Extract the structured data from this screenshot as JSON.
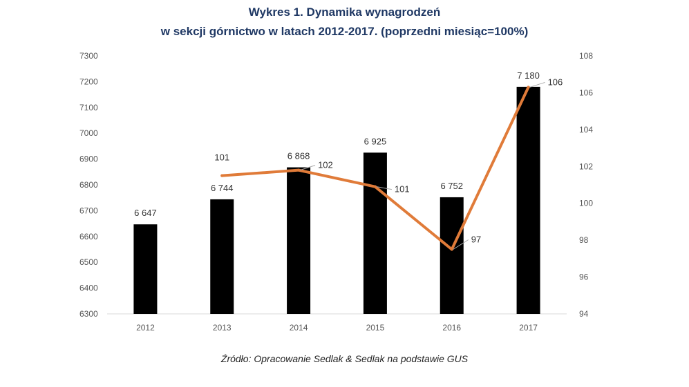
{
  "chart_data": {
    "type": "bar+line",
    "title_line1": "Wykres 1. Dynamika wynagrodzeń",
    "title_line2": "w sekcji górnictwo w latach 2012-2017. (poprzedni miesiąc=100%)",
    "categories": [
      "2012",
      "2013",
      "2014",
      "2015",
      "2016",
      "2017"
    ],
    "bar_series": {
      "values": [
        6647,
        6744,
        6868,
        6925,
        6752,
        7180
      ],
      "labels": [
        "6 647",
        "6 744",
        "6 868",
        "6 925",
        "6 752",
        "7 180"
      ],
      "color": "#000000"
    },
    "line_series": {
      "x": [
        "2013",
        "2014",
        "2015",
        "2016",
        "2017"
      ],
      "values": [
        101.5,
        101.8,
        100.9,
        97.5,
        106.3
      ],
      "labels": [
        "101",
        "102",
        "101",
        "97",
        "106"
      ],
      "color": "#e07b39"
    },
    "y_left": {
      "ylim": [
        6300,
        7300
      ],
      "ticks": [
        "6300",
        "6400",
        "6500",
        "6600",
        "6700",
        "6800",
        "6900",
        "7000",
        "7100",
        "7200",
        "7300"
      ]
    },
    "y_right": {
      "ylim": [
        94,
        108
      ],
      "ticks": [
        "94",
        "96",
        "98",
        "100",
        "102",
        "104",
        "106",
        "108"
      ]
    },
    "source": "Źródło: Opracowanie Sedlak & Sedlak na podstawie GUS"
  }
}
